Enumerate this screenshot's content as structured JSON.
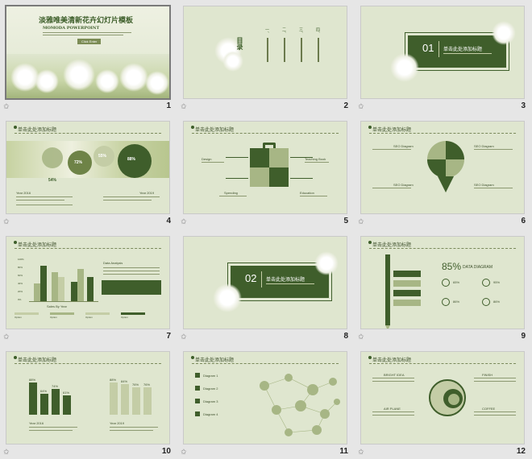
{
  "slides": [
    {
      "num": "1",
      "title": "淡雅唯美清新花卉幻灯片模板",
      "subtitle": "MOMODA POWERPOINT",
      "button": "Click Enter"
    },
    {
      "num": "2",
      "title": "目录",
      "items": [
        "一、",
        "二、",
        "三、",
        "四、"
      ]
    },
    {
      "num": "3",
      "section_num": "01",
      "section_title": "单击此处添加标题"
    },
    {
      "num": "4",
      "header": "单击此处添加标题",
      "pcts": [
        "54%",
        "72%",
        "55%",
        "88%"
      ],
      "year_left": "Year 2016",
      "year_right": "Year 2019"
    },
    {
      "num": "5",
      "header": "单击此处添加标题",
      "labels": [
        "Design",
        "Teaching Book",
        "Spending",
        "Education"
      ]
    },
    {
      "num": "6",
      "header": "单击此处添加标题",
      "labels": [
        "SEO Diagram",
        "SEO Diagram",
        "SEO Diagram",
        "SEO Diagram"
      ]
    },
    {
      "num": "7",
      "header": "单击此处添加标题",
      "axis_label": "Sales By Year",
      "analysis": "Data Analysis",
      "y_ticks": [
        "100%",
        "80%",
        "60%",
        "40%",
        "20%",
        "0%"
      ],
      "legend": [
        "Option",
        "Option",
        "Option",
        "Option"
      ]
    },
    {
      "num": "8",
      "section_num": "02",
      "section_title": "单击此处添加标题"
    },
    {
      "num": "9",
      "header": "单击此处添加标题",
      "big_pct": "85%",
      "big_label": "DATA DIAGRAM",
      "small_pcts": [
        "65%",
        "95%",
        "86%",
        "86%"
      ]
    },
    {
      "num": "10",
      "header": "单击此处添加标题",
      "left_vals": [
        "88%",
        "64%",
        "74%",
        "61%"
      ],
      "right_vals": [
        "88%",
        "84%",
        "76%",
        "76%"
      ],
      "year_left": "Year 2016",
      "year_right": "Year 2019"
    },
    {
      "num": "11",
      "header": "单击此处添加标题",
      "items": [
        "Diagram 1",
        "Diagram 2",
        "Diagram 3",
        "Diagram 4"
      ]
    },
    {
      "num": "12",
      "header": "单击此处添加标题",
      "labels": [
        "BRIGHT IDEA",
        "FINISH",
        "AIR PLANE",
        "COFFEE"
      ]
    }
  ],
  "colors": {
    "accent": "#3f5e2b",
    "slide_bg": "#dfe6cf",
    "mid": "#a7b685"
  }
}
